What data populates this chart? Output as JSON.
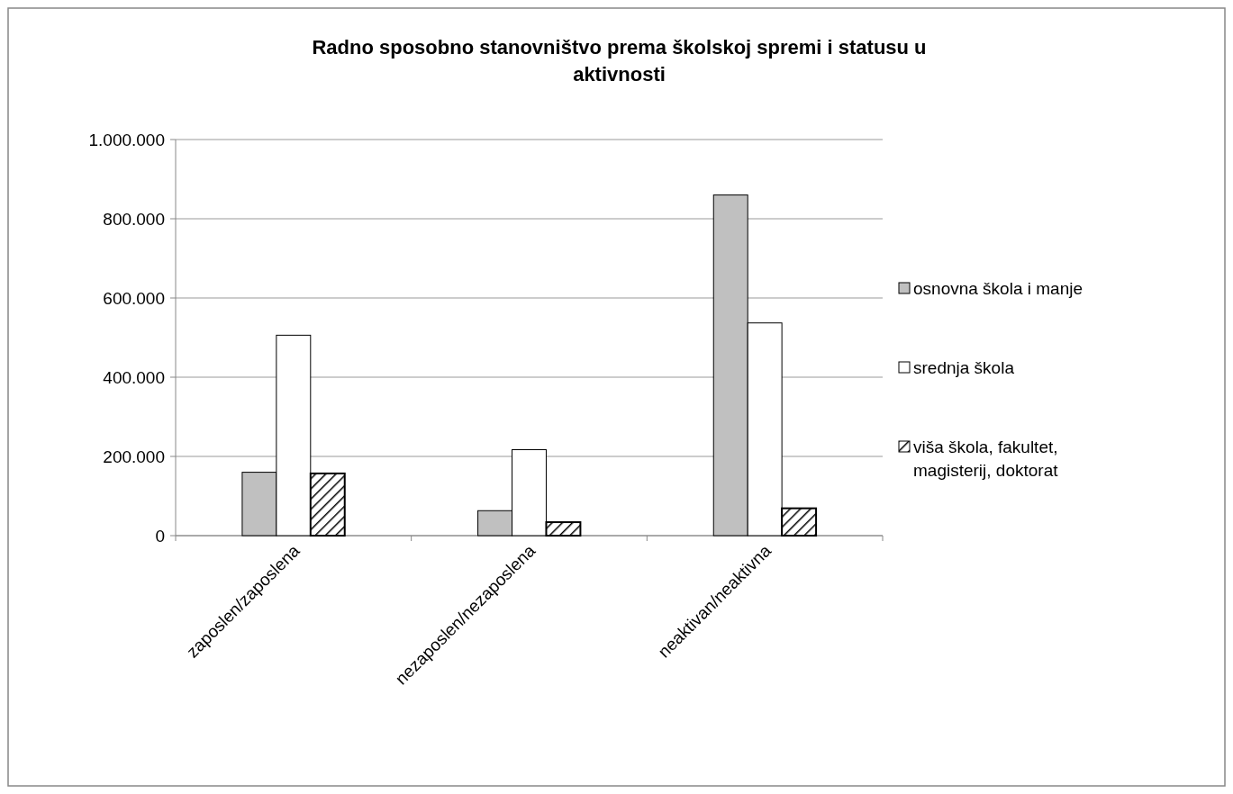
{
  "chart_data": {
    "type": "bar",
    "title": "Radno sposobno stanovništvo prema školskoj spremi i statusu u aktivnosti",
    "categories": [
      "zaposlen/zaposlena",
      "nezaposlen/nezaposlena",
      "neaktivan/neaktivna"
    ],
    "series": [
      {
        "name": "osnovna škola i manje",
        "color": "#c0c0c0",
        "values": [
          160000,
          63000,
          860000
        ]
      },
      {
        "name": "srednja škola",
        "color": "#ffffff",
        "values": [
          506000,
          217000,
          537000
        ]
      },
      {
        "name": "viša škola, fakultet, magisterij, doktorat",
        "color": "#000000",
        "values": [
          157000,
          34000,
          69000
        ]
      }
    ],
    "ylim": [
      0,
      1000000
    ],
    "yticks": [
      {
        "value": 0,
        "label": "0"
      },
      {
        "value": 200000,
        "label": "200.000"
      },
      {
        "value": 400000,
        "label": "400.000"
      },
      {
        "value": 600000,
        "label": "600.000"
      },
      {
        "value": 800000,
        "label": "800.000"
      },
      {
        "value": 1000000,
        "label": "1.000.000"
      }
    ],
    "grid": "y",
    "legend": "right"
  }
}
